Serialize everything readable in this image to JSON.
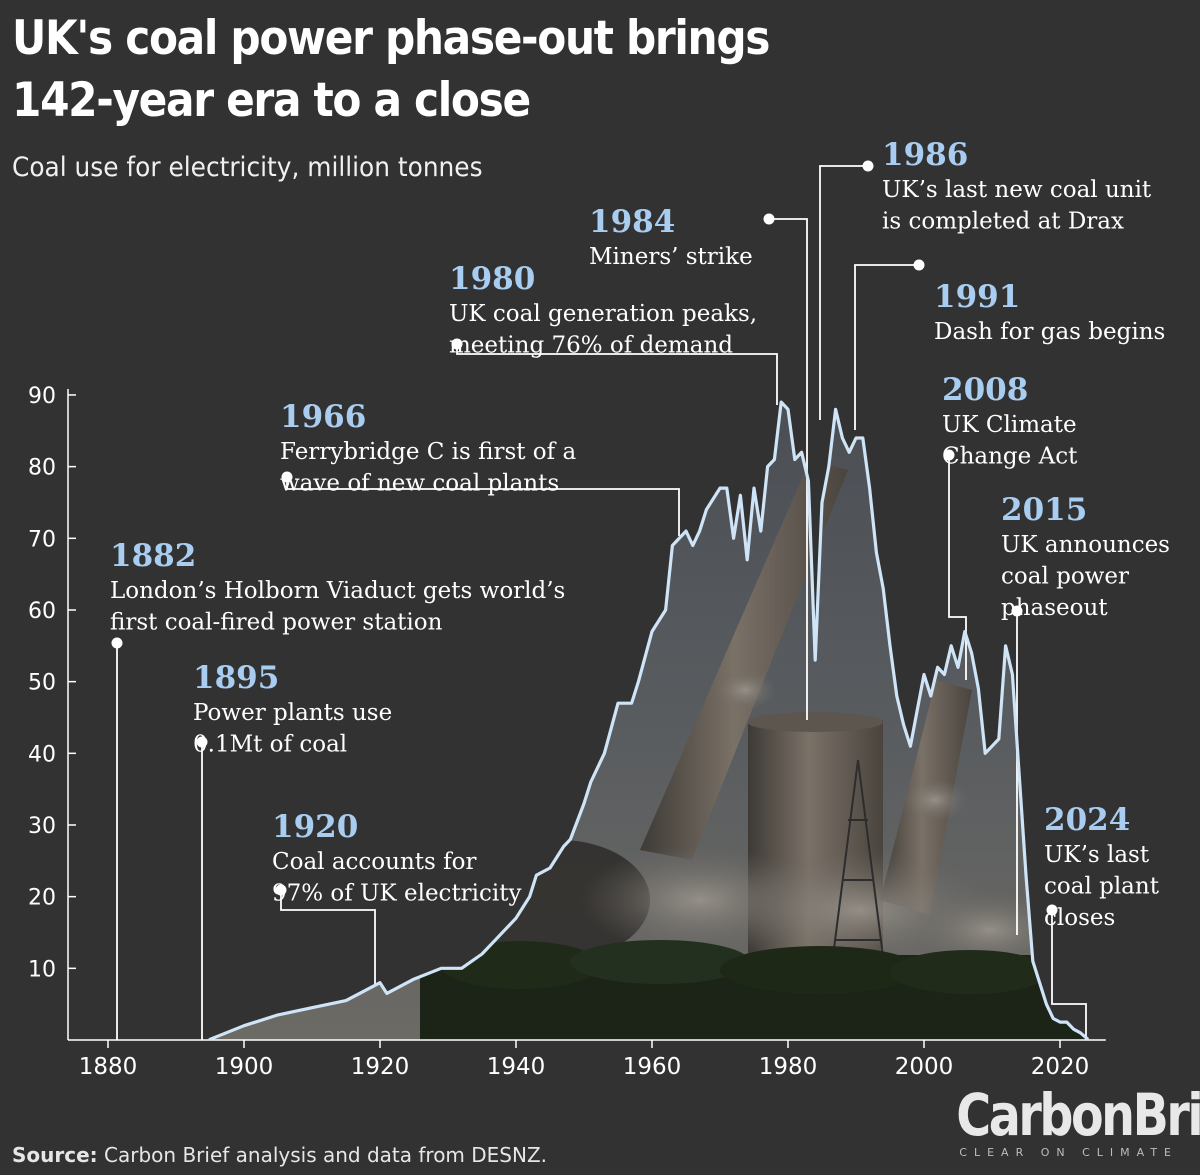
{
  "header": {
    "title_line1": "UK's coal power phase-out brings",
    "title_line2": "142-year era to a close",
    "subtitle": "Coal use for electricity, million tonnes"
  },
  "footer": {
    "source_label": "Source:",
    "source_text": " Carbon Brief analysis and data from DESNZ.",
    "brand_name": "CarbonBrief",
    "brand_tagline": "CLEAR ON CLIMATE"
  },
  "colors": {
    "background": "#323232",
    "line": "#cfe4f6",
    "annotation_year": "#a9cdf0",
    "annotation_text": "#ffffff",
    "axis": "#ffffff"
  },
  "chart_data": {
    "type": "line",
    "title": "UK's coal power phase-out brings 142-year era to a close",
    "subtitle": "Coal use for electricity, million tonnes",
    "xlabel": "",
    "ylabel": "",
    "xlim": [
      1875,
      2026
    ],
    "ylim": [
      0,
      90
    ],
    "x_ticks": [
      1880,
      1900,
      1920,
      1940,
      1960,
      1980,
      2000,
      2020
    ],
    "y_ticks": [
      10,
      20,
      30,
      40,
      50,
      60,
      70,
      80,
      90
    ],
    "grid": false,
    "series": [
      {
        "x": [
          1895,
          1900,
          1905,
          1910,
          1915,
          1917,
          1920,
          1921,
          1925,
          1929,
          1932,
          1935,
          1937,
          1940,
          1942,
          1943,
          1945,
          1947,
          1948,
          1950,
          1951,
          1953,
          1955,
          1957,
          1958,
          1960,
          1962,
          1963,
          1965,
          1966,
          1967,
          1968,
          1970,
          1971,
          1972,
          1973,
          1974,
          1975,
          1976,
          1977,
          1978,
          1979,
          1980,
          1981,
          1982,
          1983,
          1984,
          1985,
          1986,
          1987,
          1988,
          1989,
          1990,
          1991,
          1992,
          1993,
          1994,
          1995,
          1996,
          1997,
          1998,
          1999,
          2000,
          2001,
          2002,
          2003,
          2004,
          2005,
          2006,
          2007,
          2008,
          2009,
          2010,
          2011,
          2012,
          2013,
          2014,
          2015,
          2016,
          2017,
          2018,
          2019,
          2020,
          2021,
          2022,
          2023,
          2024
        ],
        "values": [
          0.1,
          2,
          3.5,
          4.5,
          5.5,
          6.5,
          8,
          6.5,
          8.5,
          10,
          10,
          12,
          14,
          17,
          20,
          23,
          24,
          27,
          28,
          33,
          36,
          40,
          47,
          47,
          50,
          57,
          60,
          69,
          71,
          69,
          71,
          74,
          77,
          77,
          70,
          76,
          67,
          77,
          71,
          80,
          81,
          89,
          88,
          81,
          82,
          78,
          53,
          75,
          80,
          88,
          84,
          82,
          84,
          84,
          77,
          68,
          63,
          55,
          48,
          44,
          41,
          46,
          51,
          48,
          52,
          51,
          55,
          52,
          57,
          54,
          49,
          40,
          41,
          42,
          55,
          51,
          37,
          23,
          11,
          8,
          5,
          3,
          2.5,
          2.5,
          1.5,
          1,
          0.2
        ]
      }
    ],
    "annotations": [
      {
        "year_label": "1882",
        "lines": [
          "London’s Holborn Viaduct gets world’s",
          "first coal-fired power station"
        ]
      },
      {
        "year_label": "1895",
        "lines": [
          "Power plants use",
          "0.1Mt of coal"
        ]
      },
      {
        "year_label": "1920",
        "lines": [
          "Coal accounts for",
          "97% of UK electricity"
        ]
      },
      {
        "year_label": "1966",
        "lines": [
          "Ferrybridge C is first of a",
          "wave of new coal plants"
        ]
      },
      {
        "year_label": "1980",
        "lines": [
          "UK coal generation peaks,",
          "meeting 76% of demand"
        ]
      },
      {
        "year_label": "1984",
        "lines": [
          "Miners’ strike"
        ]
      },
      {
        "year_label": "1986",
        "lines": [
          "UK’s last new coal unit",
          "is completed at Drax"
        ]
      },
      {
        "year_label": "1991",
        "lines": [
          "Dash for gas begins"
        ]
      },
      {
        "year_label": "2008",
        "lines": [
          "UK Climate",
          "Change Act"
        ]
      },
      {
        "year_label": "2015",
        "lines": [
          "UK announces",
          "coal power",
          "phaseout"
        ]
      },
      {
        "year_label": "2024",
        "lines": [
          "UK’s last",
          "coal plant",
          "closes"
        ]
      }
    ]
  }
}
